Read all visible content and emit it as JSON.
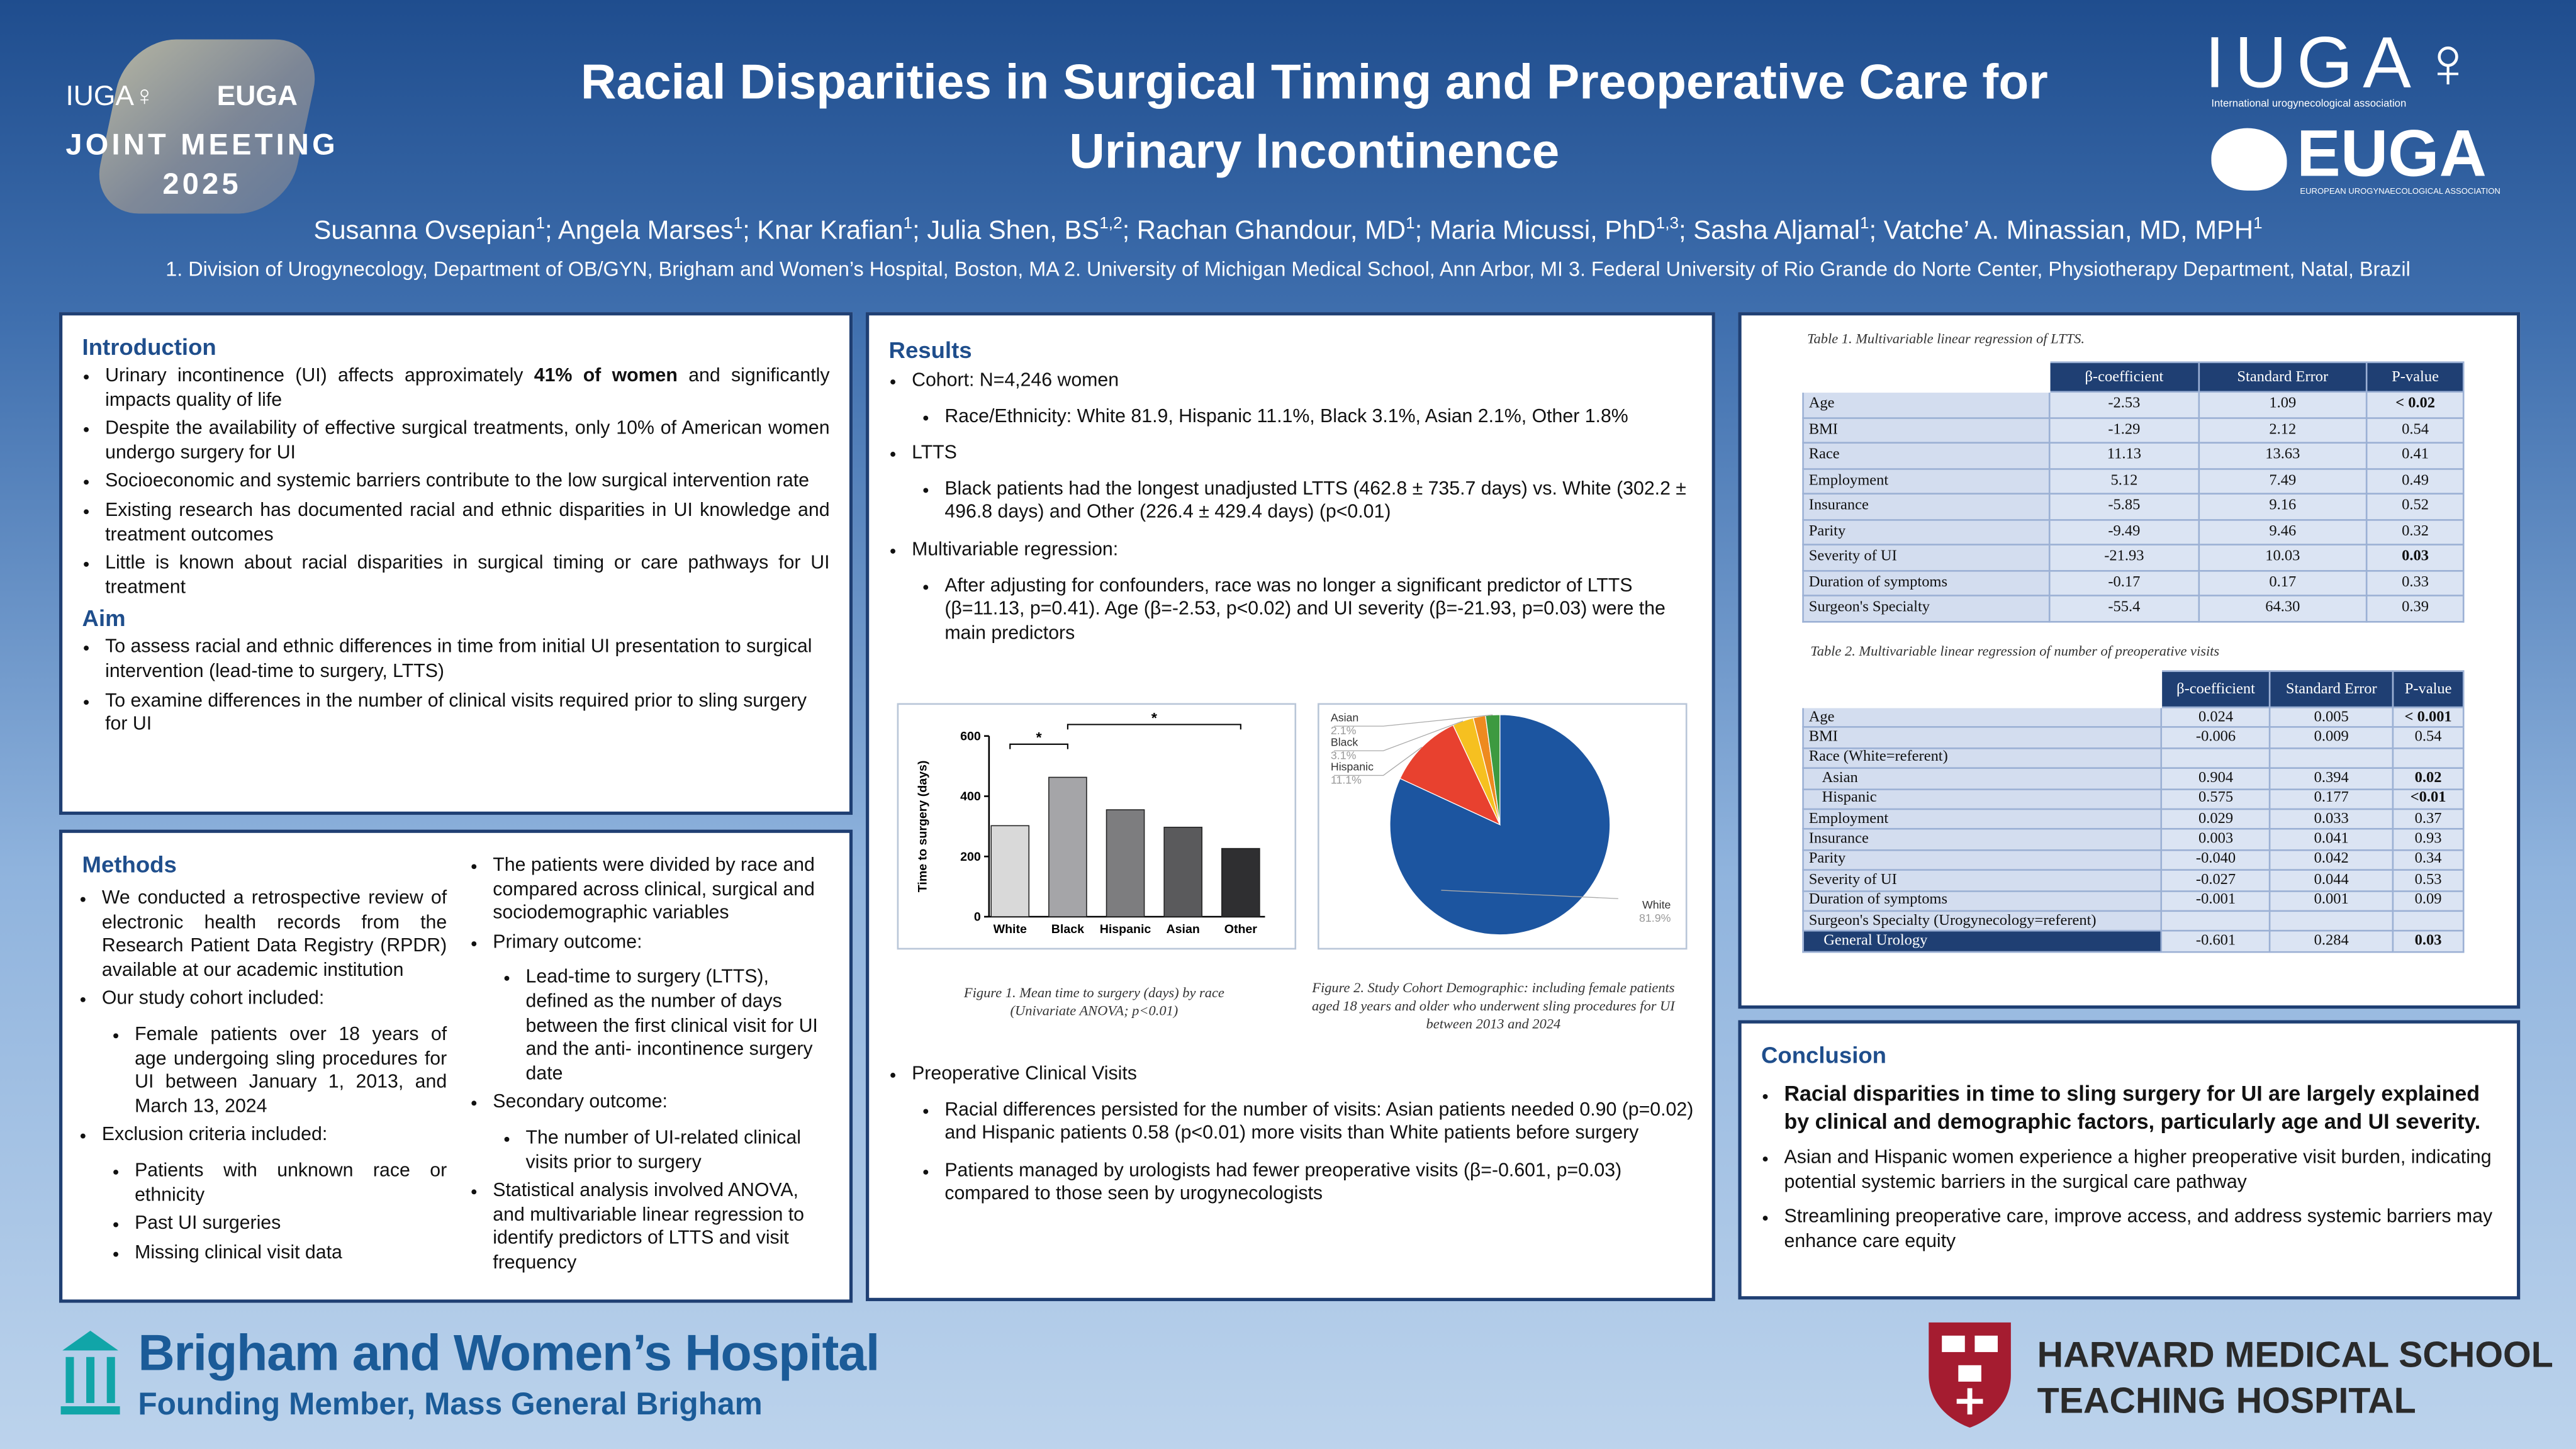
{
  "logos": {
    "meeting": [
      "IUGA♀",
      "EUGA",
      "JOINT MEETING",
      "2025"
    ],
    "iuga": "IUGA♀",
    "iuga_sub": "International urogynecological association",
    "euga": "EUGA",
    "euga_sub": "EUROPEAN UROGYNAECOLOGICAL ASSOCIATION",
    "bwh": "Brigham and Women’s Hospital",
    "bwh_sub": "Founding Member, Mass General Brigham",
    "hms": "HARVARD MEDICAL SCHOOL",
    "hms_sub": "TEACHING HOSPITAL"
  },
  "header": {
    "title": "Racial Disparities in Surgical Timing and Preoperative Care for Urinary Incontinence",
    "separator": "; ",
    "authors": [
      {
        "name": "Susanna Ovsepian",
        "sup": "1"
      },
      {
        "name": "Angela Marses",
        "sup": "1"
      },
      {
        "name": "Knar Krafian",
        "sup": "1"
      },
      {
        "name": "Julia Shen, BS",
        "sup": "1,2"
      },
      {
        "name": "Rachan Ghandour, MD",
        "sup": "1"
      },
      {
        "name": "Maria Micussi, PhD",
        "sup": "1,3"
      },
      {
        "name": "Sasha Aljamal",
        "sup": "1"
      },
      {
        "name": "Vatche’ A. Minassian, MD, MPH",
        "sup": "1"
      }
    ],
    "affiliations": "1. Division of Urogynecology, Department of OB/GYN, Brigham and Women’s Hospital, Boston, MA 2. University of Michigan Medical School, Ann Arbor, MI 3. Federal University of Rio Grande do Norte Center, Physiotherapy Department, Natal, Brazil"
  },
  "introduction": {
    "heading": "Introduction",
    "bullets": [
      {
        "runs": [
          "Urinary incontinence (UI) affects approximately ",
          "41% of women",
          " and significantly impacts quality of life"
        ]
      },
      "Despite the availability of effective surgical treatments, only 10% of American women undergo surgery for UI",
      "Socioeconomic and systemic barriers contribute to the low surgical intervention rate",
      "Existing research has documented racial and ethnic disparities in UI knowledge and treatment outcomes",
      "Little is known about racial disparities in surgical timing or care pathways for UI treatment"
    ],
    "aim_heading": "Aim",
    "aim": [
      "To assess racial and ethnic differences in time from initial UI presentation to surgical intervention (lead-time to surgery, LTTS)",
      "To examine differences in the number of clinical visits required prior to sling surgery for UI"
    ]
  },
  "methods": {
    "heading": "Methods",
    "column1": [
      "We conducted a retrospective review of electronic health records from the Research Patient Data Registry (RPDR) available at our academic institution",
      {
        "text": "Our study cohort included:",
        "sub": [
          "Female patients over 18 years of age undergoing sling procedures for UI between January 1, 2013, and March 13, 2024"
        ]
      },
      {
        "text": "Exclusion criteria included:",
        "sub": [
          "Patients with unknown race or ethnicity",
          "Past UI surgeries",
          "Missing clinical visit data"
        ]
      }
    ],
    "column2": [
      "The patients were divided by race and compared across clinical, surgical and sociodemographic variables",
      {
        "text": "Primary outcome:",
        "sub": [
          "Lead-time to surgery (LTTS), defined as the number of days between the first clinical visit for UI and the anti- incontinence surgery date"
        ]
      },
      {
        "text": "Secondary outcome:",
        "sub": [
          "The number of UI-related clinical visits prior to surgery"
        ]
      },
      "Statistical analysis involved ANOVA, and multivariable linear regression to identify predictors of LTTS and visit frequency"
    ]
  },
  "results": {
    "heading": "Results",
    "items": [
      {
        "text": "Cohort: N=4,246 women",
        "sub": [
          "Race/Ethnicity: White 81.9, Hispanic 11.1%, Black 3.1%, Asian 2.1%, Other 1.8%"
        ]
      },
      {
        "text": "LTTS",
        "sub": [
          "Black patients had the longest unadjusted LTTS (462.8 ± 735.7 days) vs. White (302.2 ± 496.8 days) and Other (226.4 ± 429.4 days) (p<0.01)"
        ]
      },
      {
        "text": "Multivariable regression:",
        "sub": [
          "After adjusting for confounders, race was no longer a significant predictor of LTTS (β=11.13, p=0.41). Age (β=-2.53, p<0.02) and UI severity (β=-21.93, p=0.03) were the main predictors"
        ]
      }
    ],
    "figure1_caption": "Figure 1. Mean time to surgery (days) by race (Univariate ANOVA; p<0.01)",
    "figure2_caption": "Figure 2. Study Cohort Demographic: including female patients aged 18 years and older who underwent sling procedures for UI between 2013 and 2024",
    "items_after": [
      {
        "text": "Preoperative Clinical Visits",
        "sub": [
          "Racial differences persisted for the number of visits: Asian patients needed 0.90 (p=0.02) and Hispanic patients 0.58 (p<0.01) more visits than White patients before surgery",
          "Patients managed by urologists had fewer preoperative visits (β=-0.601, p=0.03) compared to those seen by urogynecologists"
        ]
      }
    ]
  },
  "chart_data": [
    {
      "type": "bar",
      "ylabel": "Time to surgery (days)",
      "categories": [
        "White",
        "Black",
        "Hispanic",
        "Asian",
        "Other"
      ],
      "values": [
        302.2,
        462.8,
        355,
        297,
        226.4
      ],
      "colors": [
        "#d9d9d9",
        "#a5a5a8",
        "#7d7d7f",
        "#5a5a5c",
        "#2f2f31"
      ],
      "ylim": [
        0,
        600
      ],
      "yticks": [
        0,
        200,
        400,
        600
      ],
      "annotations": [
        "*",
        "*"
      ]
    },
    {
      "type": "pie",
      "categories": [
        "White",
        "Hispanic",
        "Black",
        null,
        "Asian"
      ],
      "values": [
        81.9,
        11.1,
        3.1,
        1.8,
        2.1
      ],
      "value_labels": [
        "81.9%",
        "11.1%",
        "3.1%",
        null,
        "2.1%"
      ],
      "colors": [
        "#1c55a0",
        "#e8412f",
        "#f6c020",
        "#ee8a1f",
        "#3d9a40"
      ]
    }
  ],
  "tables": [
    {
      "caption": "Table 1. Multivariable linear regression of LTTS.",
      "headers": [
        "β-coefficient",
        "Standard Error",
        "P-value"
      ],
      "rows": [
        [
          "Age",
          "-2.53",
          "1.09",
          "< 0.02"
        ],
        [
          "BMI",
          "-1.29",
          "2.12",
          "0.54"
        ],
        [
          "Race",
          "11.13",
          "13.63",
          "0.41"
        ],
        [
          "Employment",
          "5.12",
          "7.49",
          "0.49"
        ],
        [
          "Insurance",
          "-5.85",
          "9.16",
          "0.52"
        ],
        [
          "Parity",
          "-9.49",
          "9.46",
          "0.32"
        ],
        [
          "Severity of UI",
          "-21.93",
          "10.03",
          "0.03"
        ],
        [
          "Duration of symptoms",
          "-0.17",
          "0.17",
          "0.33"
        ],
        [
          "Surgeon's Specialty",
          "-55.4",
          "64.30",
          "0.39"
        ]
      ],
      "bold_p": [
        0,
        6
      ],
      "indent": []
    },
    {
      "caption": "Table 2. Multivariable linear regression of number of preoperative visits",
      "headers": [
        "β-coefficient",
        "Standard Error",
        "P-value"
      ],
      "rows": [
        [
          "Age",
          "0.024",
          "0.005",
          "< 0.001"
        ],
        [
          "BMI",
          "-0.006",
          "0.009",
          "0.54"
        ],
        [
          "Race (White=referent)"
        ],
        [
          "Asian",
          "0.904",
          "0.394",
          "0.02"
        ],
        [
          "Hispanic",
          "0.575",
          "0.177",
          "<0.01"
        ],
        [
          "Employment",
          "0.029",
          "0.033",
          "0.37"
        ],
        [
          "Insurance",
          "0.003",
          "0.041",
          "0.93"
        ],
        [
          "Parity",
          "-0.040",
          "0.042",
          "0.34"
        ],
        [
          "Severity of UI",
          "-0.027",
          "0.044",
          "0.53"
        ],
        [
          "Duration of symptoms",
          "-0.001",
          "0.001",
          "0.09"
        ],
        [
          "Surgeon's Specialty (Urogynecology=referent)"
        ],
        [
          "General Urology",
          "-0.601",
          "0.284",
          "0.03"
        ]
      ],
      "bold_p": [
        0,
        3,
        4,
        11
      ],
      "indent": [
        3,
        4,
        11
      ]
    }
  ],
  "conclusion": {
    "heading": "Conclusion",
    "bullets": [
      {
        "strong": "Racial disparities in time to sling surgery for UI are largely explained by clinical and demographic factors, particularly age and UI severity."
      },
      "Asian and Hispanic women experience a higher preoperative visit burden, indicating potential systemic barriers in the surgical care pathway",
      "Streamlining preoperative care, improve access, and address systemic barriers may enhance care equity"
    ]
  }
}
